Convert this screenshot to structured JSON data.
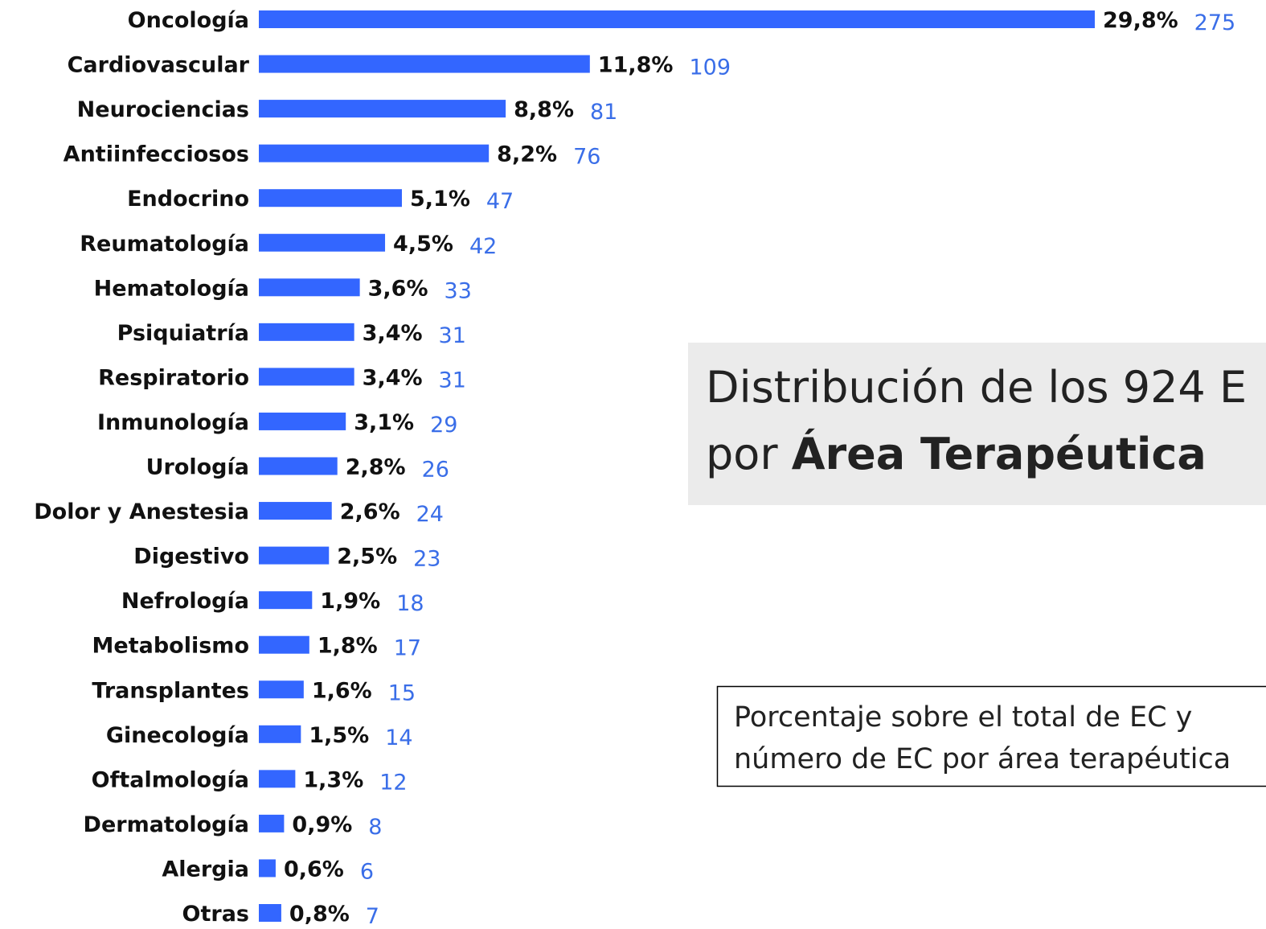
{
  "chart_data": {
    "type": "bar",
    "orientation": "horizontal",
    "color": "#3366ff",
    "label_color": "#3a6ee8",
    "categories": [
      "Oncología",
      "Cardiovascular",
      "Neurociencias",
      "Antiinfecciosos",
      "Endocrino",
      "Reumatología",
      "Hematología",
      "Psiquiatría",
      "Respiratorio",
      "Inmunología",
      "Urología",
      "Dolor y Anestesia",
      "Digestivo",
      "Nefrología",
      "Metabolismo",
      "Transplantes",
      "Ginecología",
      "Oftalmología",
      "Dermatología",
      "Alergia",
      "Otras"
    ],
    "values": [
      29.8,
      11.8,
      8.8,
      8.2,
      5.1,
      4.5,
      3.6,
      3.4,
      3.4,
      3.1,
      2.8,
      2.6,
      2.5,
      1.9,
      1.8,
      1.6,
      1.5,
      1.3,
      0.9,
      0.6,
      0.8
    ],
    "value_labels": [
      "29,8%",
      "11,8%",
      "8,8%",
      "8,2%",
      "5,1%",
      "4,5%",
      "3,6%",
      "3,4%",
      "3,4%",
      "3,1%",
      "2,8%",
      "2,6%",
      "2,5%",
      "1,9%",
      "1,8%",
      "1,6%",
      "1,5%",
      "1,3%",
      "0,9%",
      "0,6%",
      "0,8%"
    ],
    "counts": [
      275,
      109,
      81,
      76,
      47,
      42,
      33,
      31,
      31,
      29,
      26,
      24,
      23,
      18,
      17,
      15,
      14,
      12,
      8,
      6,
      7
    ],
    "title_line1": "Distribución de los 924 E",
    "title_line2_prefix": "por",
    "title_line2_bold": "Área Terapéutica",
    "note_line1": "Porcentaje sobre el total de EC y",
    "note_line2": "número de EC por área terapéutica"
  }
}
